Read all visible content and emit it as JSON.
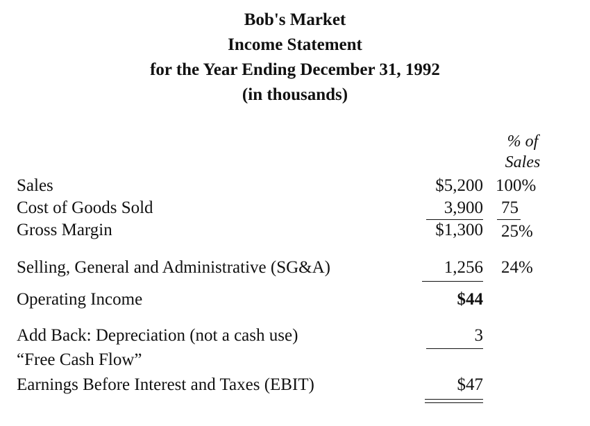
{
  "header": {
    "company": "Bob's Market",
    "statement": "Income Statement",
    "period": "for the Year Ending December 31, 1992",
    "units": "(in thousands)"
  },
  "columns": {
    "pct_header_line1": "% of",
    "pct_header_line2": "Sales"
  },
  "rows": [
    {
      "label": "Sales",
      "amount": "$5,200",
      "pct": "100%"
    },
    {
      "label": "Cost of Goods Sold",
      "amount": "3,900",
      "pct": "75"
    },
    {
      "label": "Gross Margin",
      "amount": "$1,300",
      "pct": "25%"
    },
    {
      "label": "Selling, General and Administrative (SG&A)",
      "amount": "1,256",
      "pct": "24%"
    },
    {
      "label": "Operating Income",
      "amount": "$44",
      "pct": ""
    },
    {
      "label": "Add Back: Depreciation (not a cash use)",
      "amount": "3",
      "pct": ""
    },
    {
      "label": "“Free Cash Flow”",
      "amount": "",
      "pct": ""
    },
    {
      "label": "Earnings Before Interest and Taxes (EBIT)",
      "amount": "$47",
      "pct": ""
    }
  ]
}
